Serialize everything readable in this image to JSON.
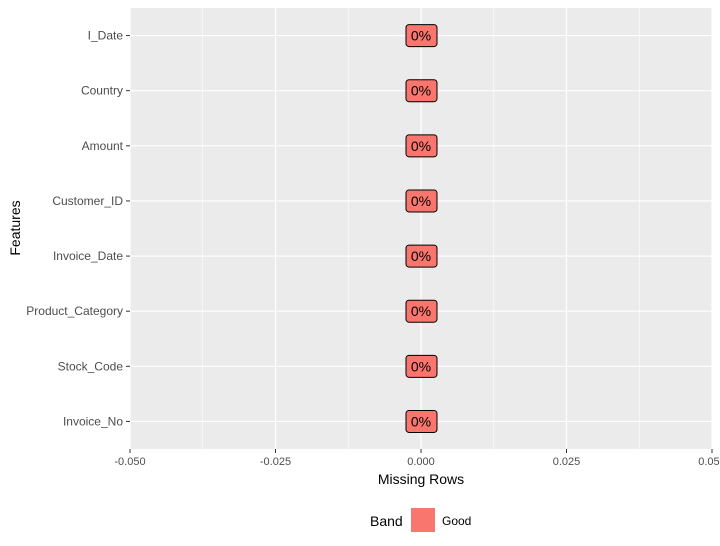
{
  "chart_data": {
    "type": "bar",
    "orientation": "horizontal",
    "categories": [
      "Invoice_No",
      "Stock_Code",
      "Product_Category",
      "Invoice_Date",
      "Customer_ID",
      "Amount",
      "Country",
      "I_Date"
    ],
    "values": [
      0,
      0,
      0,
      0,
      0,
      0,
      0,
      0
    ],
    "data_labels": [
      "0%",
      "0%",
      "0%",
      "0%",
      "0%",
      "0%",
      "0%",
      "0%"
    ],
    "bands": [
      "Good",
      "Good",
      "Good",
      "Good",
      "Good",
      "Good",
      "Good",
      "Good"
    ],
    "xlabel": "Missing Rows",
    "ylabel": "Features",
    "xlim": [
      -0.05,
      0.05
    ],
    "x_ticks": [
      -0.05,
      -0.025,
      0,
      0.025,
      0.05
    ],
    "x_tick_labels": [
      "-0.050",
      "-0.025",
      "0.000",
      "0.025",
      "0.050"
    ],
    "grid": true,
    "legend": {
      "title": "Band",
      "position": "bottom",
      "entries": [
        {
          "label": "Good",
          "color": "#F8766D"
        }
      ]
    },
    "colors": {
      "panel": "#EBEBEB",
      "grid": "#FFFFFF",
      "good": "#F8766D"
    }
  }
}
